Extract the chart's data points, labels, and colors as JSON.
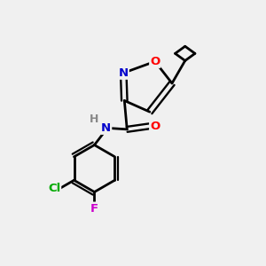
{
  "background_color": "#f0f0f0",
  "bond_color": "#000000",
  "atom_colors": {
    "N": "#0000cc",
    "O": "#ff0000",
    "Cl": "#00aa00",
    "F": "#cc00cc",
    "H": "#888888",
    "C": "#000000"
  },
  "figsize": [
    3.0,
    3.0
  ],
  "dpi": 100
}
